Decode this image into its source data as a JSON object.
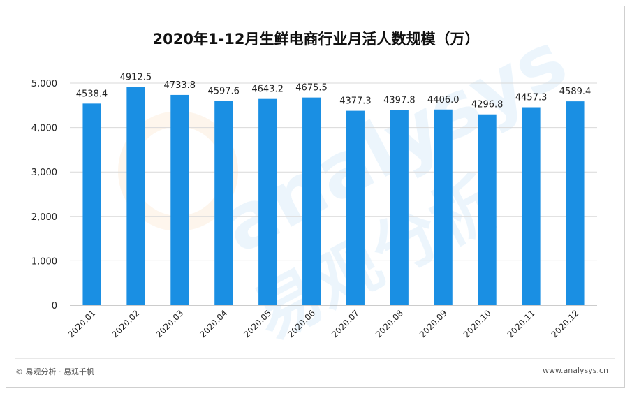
{
  "chart_data": {
    "type": "bar",
    "title": "2020年1-12月生鲜电商行业月活人数规模（万）",
    "categories": [
      "2020.01",
      "2020.02",
      "2020.03",
      "2020.04",
      "2020.05",
      "2020.06",
      "2020.07",
      "2020.08",
      "2020.09",
      "2020.10",
      "2020.11",
      "2020.12"
    ],
    "values": [
      4538.4,
      4912.5,
      4733.8,
      4597.6,
      4643.2,
      4675.5,
      4377.3,
      4397.8,
      4406.0,
      4296.8,
      4457.3,
      4589.4
    ],
    "data_labels": [
      "4538.4",
      "4912.5",
      "4733.8",
      "4597.6",
      "4643.2",
      "4675.5",
      "4377.3",
      "4397.8",
      "4406.0",
      "4296.8",
      "4457.3",
      "4589.4"
    ],
    "yticks": [
      "0",
      "1,000",
      "2,000",
      "3,000",
      "4,000",
      "5,000"
    ],
    "ytick_values": [
      0,
      1000,
      2000,
      3000,
      4000,
      5000
    ],
    "ylim": [
      0,
      5000
    ],
    "grid": true,
    "bar_color": "#1a8fe3"
  },
  "watermark": {
    "text_en": "analysys",
    "text_cn": "易观分析"
  },
  "footer": {
    "source": "© 易观分析 · 易观千帆",
    "url": "www.analysys.cn"
  }
}
